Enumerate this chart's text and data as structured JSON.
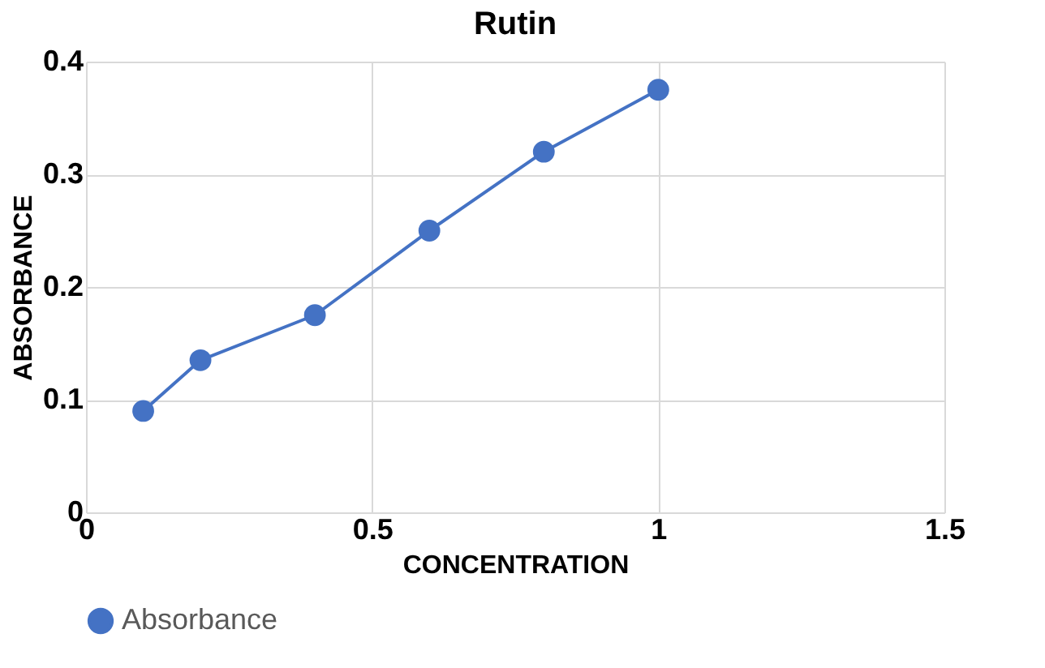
{
  "chart_data": {
    "type": "line",
    "title": "Rutin",
    "xlabel": "CONCENTRATION",
    "ylabel": "ABSORBANCE",
    "x": [
      0.1,
      0.2,
      0.4,
      0.6,
      0.8,
      1
    ],
    "series": [
      {
        "name": "Absorbance",
        "color": "#4472c4",
        "values": [
          0.09,
          0.135,
          0.175,
          0.25,
          0.32,
          0.375
        ]
      }
    ],
    "xlim": [
      0,
      1.5
    ],
    "xticks": [
      0,
      0.5,
      1,
      1.5
    ],
    "ylim": [
      0,
      0.4
    ],
    "yticks": [
      0,
      0.1,
      0.2,
      0.3,
      0.4
    ],
    "grid": true,
    "legend": "bottom",
    "marker": "circle",
    "line_style": "solid"
  }
}
